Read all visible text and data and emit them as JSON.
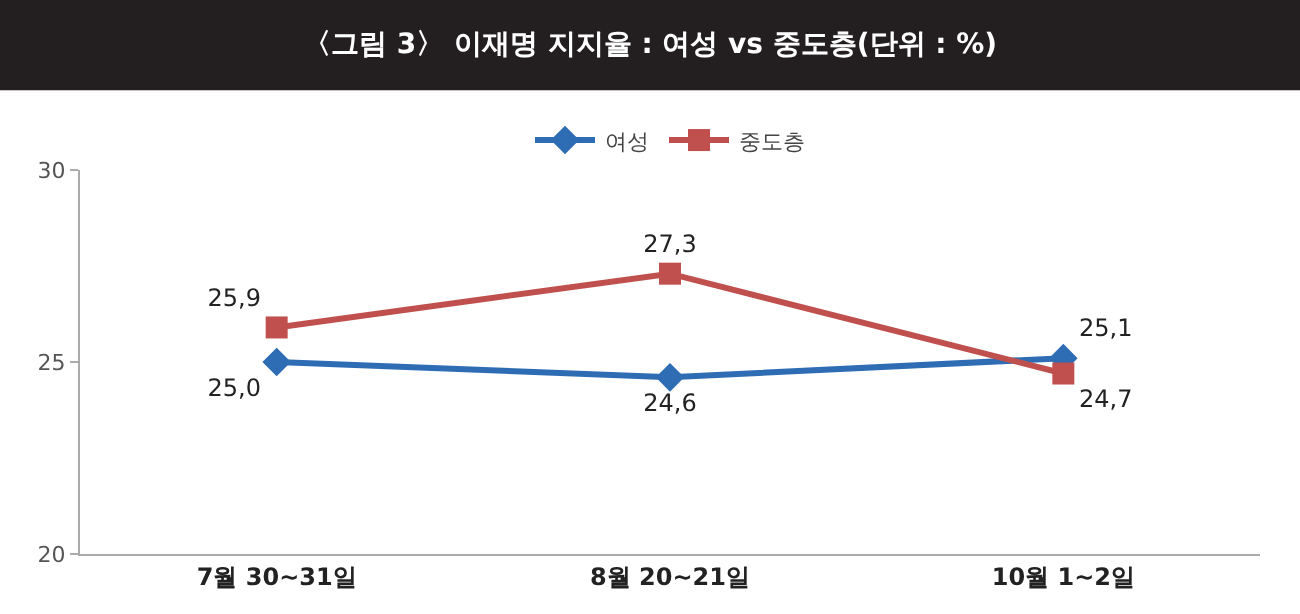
{
  "chart_data": {
    "type": "line",
    "title": "〈그림 3〉 이재명 지지율 : 여성 vs 중도층(단위 : %)",
    "categories": [
      "7월 30~31일",
      "8월 20~21일",
      "10월 1~2일"
    ],
    "series": [
      {
        "name": "여성",
        "color": "#2e6db4",
        "values": [
          25.0,
          24.6,
          25.1
        ],
        "value_labels": [
          "25,0",
          "24,6",
          "25,1"
        ],
        "marker": "diamond"
      },
      {
        "name": "중도층",
        "color": "#c0504d",
        "values": [
          25.9,
          27.3,
          24.7
        ],
        "value_labels": [
          "25,9",
          "27,3",
          "24,7"
        ],
        "marker": "square"
      }
    ],
    "ylim": [
      20,
      30
    ],
    "yticks": [
      20,
      25,
      30
    ],
    "legend": "top",
    "line_style": "solid"
  }
}
